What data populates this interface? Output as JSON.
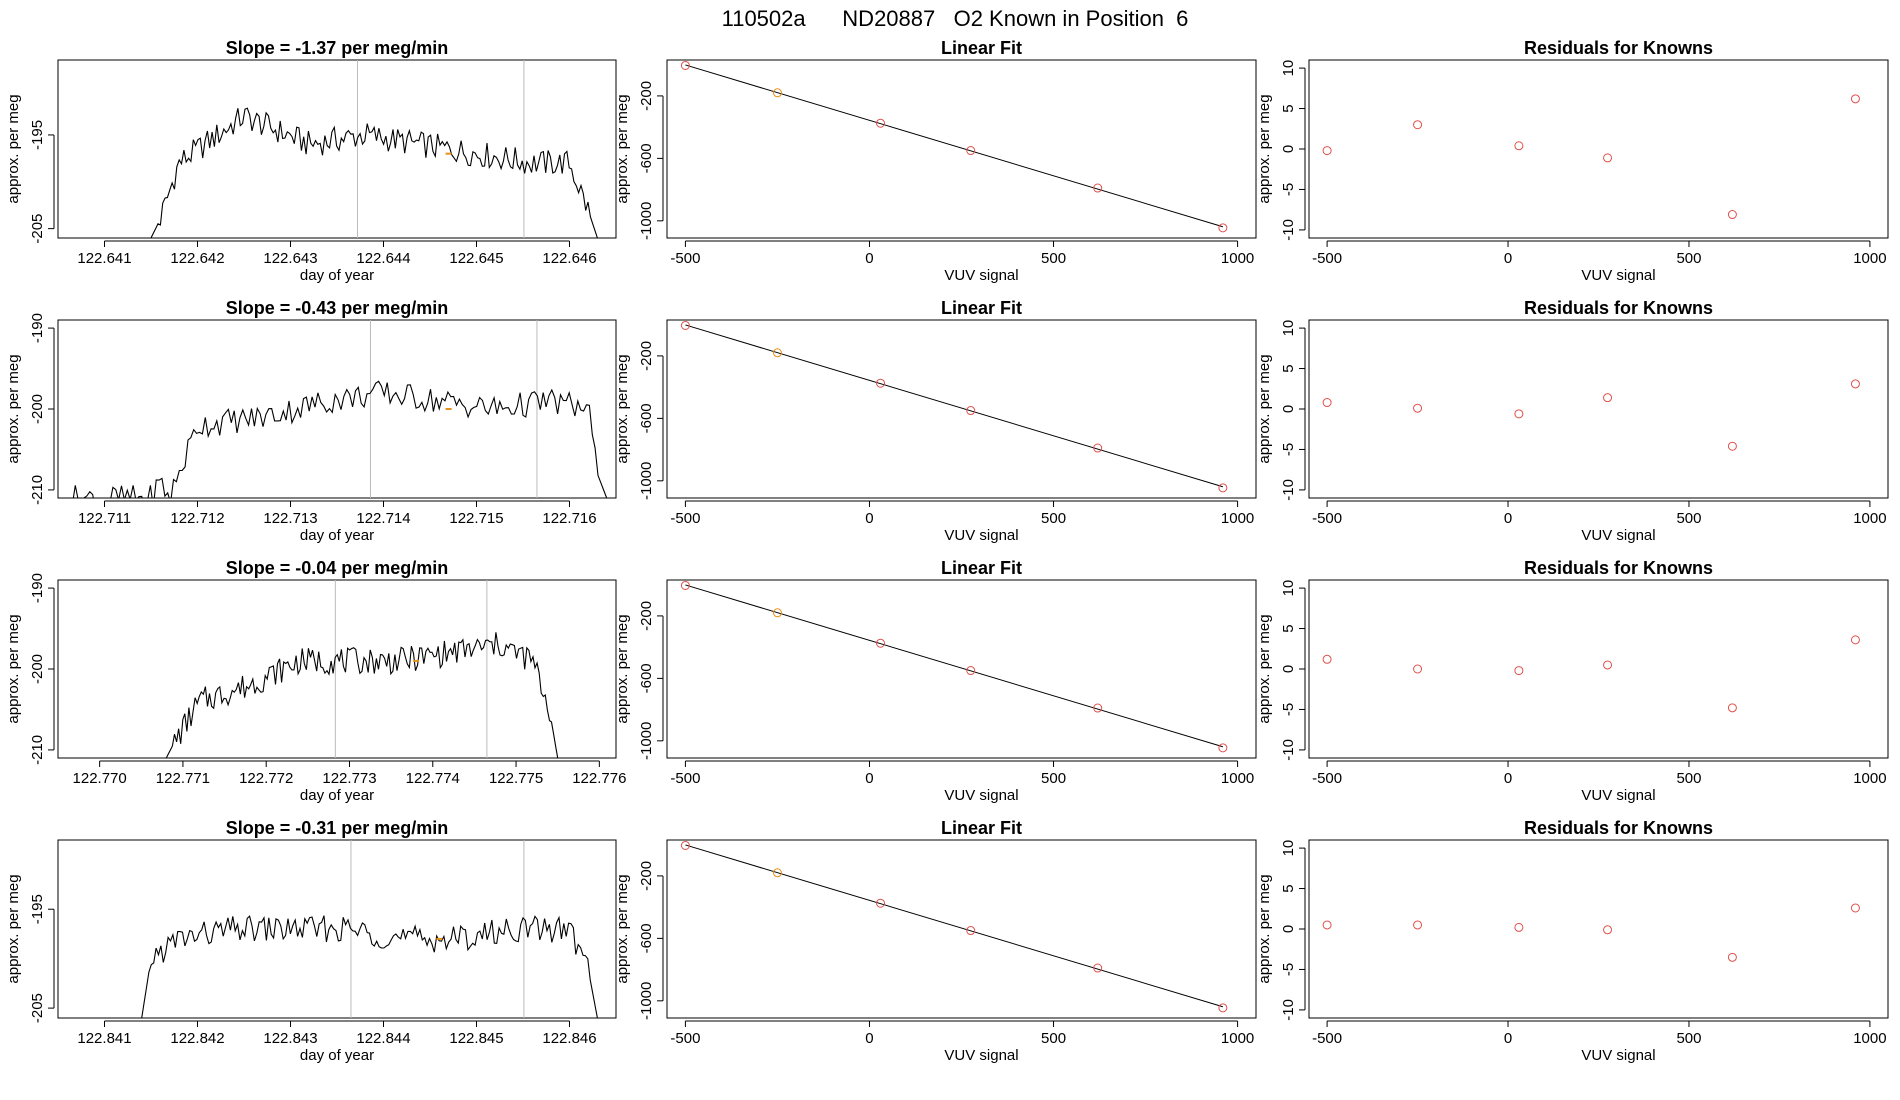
{
  "header": {
    "title": "110502a      ND20887   O2 Known in Position  6"
  },
  "colors": {
    "line": "#000000",
    "point_red": "#e0504a",
    "point_orange": "#e8901a",
    "vline": "#bbbbbb",
    "frame": "#000000"
  },
  "chart_data": [
    {
      "type": "line",
      "row": 0,
      "col": 0,
      "title": "Slope =  -1.37  per meg/min",
      "xlabel": "day of year",
      "ylabel": "approx. per meg",
      "xlim": [
        122.6405,
        122.6465
      ],
      "ylim": [
        -206,
        -187
      ],
      "xticks": [
        "122.641",
        "122.642",
        "122.643",
        "122.644",
        "122.645",
        "122.646"
      ],
      "yticks": [
        "-205",
        "-195"
      ],
      "vlines": [
        122.64372,
        122.64551
      ],
      "marker": {
        "x": 122.6447,
        "y": -197,
        "color": "orange"
      },
      "x": [
        122.6415,
        122.6416,
        122.6418,
        122.6425,
        122.6432,
        122.6438,
        122.6444,
        122.645,
        122.6456,
        122.646,
        122.6462,
        122.6463
      ],
      "y": [
        -206,
        -204,
        -198,
        -193,
        -196,
        -195,
        -196,
        -197,
        -198,
        -198,
        -203,
        -206
      ]
    },
    {
      "type": "scatter",
      "row": 0,
      "col": 1,
      "fit": true,
      "title": "Linear Fit",
      "xlabel": "VUV signal",
      "ylabel": "approx. per meg",
      "xlim": [
        -550,
        1050
      ],
      "ylim": [
        -1110,
        30
      ],
      "xticks": [
        "-500",
        "0",
        "500",
        "1000"
      ],
      "yticks": [
        "-200",
        "-600",
        "-1000"
      ],
      "x": [
        -500,
        -250,
        30,
        275,
        620,
        960
      ],
      "y": [
        -5,
        -180,
        -375,
        -550,
        -790,
        -1045
      ],
      "point_colors": [
        "red",
        "orange",
        "red",
        "red",
        "red",
        "red"
      ]
    },
    {
      "type": "scatter",
      "row": 0,
      "col": 2,
      "title": "Residuals for Knowns",
      "xlabel": "VUV signal",
      "ylabel": "approx. per meg",
      "xlim": [
        -550,
        1050
      ],
      "ylim": [
        -11,
        11
      ],
      "xticks": [
        "-500",
        "0",
        "500",
        "1000"
      ],
      "yticks": [
        "10",
        "5",
        "0",
        "-5",
        "-10"
      ],
      "x": [
        -500,
        -250,
        30,
        275,
        620,
        960
      ],
      "y": [
        -0.2,
        3.0,
        0.4,
        -1.1,
        -8.1,
        6.2
      ]
    },
    {
      "type": "line",
      "row": 1,
      "col": 0,
      "title": "Slope =  -0.43  per meg/min",
      "xlabel": "day of year",
      "ylabel": "approx. per meg",
      "xlim": [
        122.7105,
        122.7165
      ],
      "ylim": [
        -211,
        -189
      ],
      "xticks": [
        "122.711",
        "122.712",
        "122.713",
        "122.714",
        "122.715",
        "122.716"
      ],
      "yticks": [
        "-190",
        "-200",
        "-210"
      ],
      "vlines": [
        122.71386,
        122.71565
      ],
      "marker": {
        "x": 122.7147,
        "y": -200,
        "color": "orange"
      },
      "x": [
        122.7105,
        122.7115,
        122.7116,
        122.7117,
        122.712,
        122.7127,
        122.7134,
        122.714,
        122.7146,
        122.7152,
        122.7158,
        122.7162,
        122.7163,
        122.7164
      ],
      "y": [
        -211,
        -211,
        -209,
        -211,
        -202,
        -201,
        -199,
        -198,
        -199,
        -200,
        -199,
        -200,
        -208,
        -211
      ]
    },
    {
      "type": "scatter",
      "row": 1,
      "col": 1,
      "fit": true,
      "title": "Linear Fit",
      "xlabel": "VUV signal",
      "ylabel": "approx. per meg",
      "xlim": [
        -550,
        1050
      ],
      "ylim": [
        -1110,
        30
      ],
      "xticks": [
        "-500",
        "0",
        "500",
        "1000"
      ],
      "yticks": [
        "-200",
        "-600",
        "-1000"
      ],
      "x": [
        -500,
        -250,
        30,
        275,
        620,
        960
      ],
      "y": [
        -5,
        -180,
        -375,
        -550,
        -790,
        -1045
      ],
      "point_colors": [
        "red",
        "orange",
        "red",
        "red",
        "red",
        "red"
      ]
    },
    {
      "type": "scatter",
      "row": 1,
      "col": 2,
      "title": "Residuals for Knowns",
      "xlabel": "VUV signal",
      "ylabel": "approx. per meg",
      "xlim": [
        -550,
        1050
      ],
      "ylim": [
        -11,
        11
      ],
      "xticks": [
        "-500",
        "0",
        "500",
        "1000"
      ],
      "yticks": [
        "10",
        "5",
        "0",
        "-5",
        "-10"
      ],
      "x": [
        -500,
        -250,
        30,
        275,
        620,
        960
      ],
      "y": [
        0.8,
        0.1,
        -0.6,
        1.4,
        -4.6,
        3.1
      ]
    },
    {
      "type": "line",
      "row": 2,
      "col": 0,
      "title": "Slope =  -0.04  per meg/min",
      "xlabel": "day of year",
      "ylabel": "approx. per meg",
      "xlim": [
        122.7695,
        122.7762
      ],
      "ylim": [
        -211,
        -189
      ],
      "xticks": [
        "122.770",
        "122.771",
        "122.772",
        "122.773",
        "122.774",
        "122.775",
        "122.776"
      ],
      "yticks": [
        "-190",
        "-200",
        "-210"
      ],
      "vlines": [
        122.77283,
        122.77465
      ],
      "marker": {
        "x": 122.7738,
        "y": -199,
        "color": "orange"
      },
      "x": [
        122.7708,
        122.7709,
        122.7712,
        122.7718,
        122.7724,
        122.773,
        122.7736,
        122.7742,
        122.7748,
        122.7752,
        122.7754,
        122.7755
      ],
      "y": [
        -211,
        -209,
        -204,
        -202,
        -199,
        -199,
        -199,
        -198,
        -197,
        -199,
        -205,
        -211
      ]
    },
    {
      "type": "scatter",
      "row": 2,
      "col": 1,
      "fit": true,
      "title": "Linear Fit",
      "xlabel": "VUV signal",
      "ylabel": "approx. per meg",
      "xlim": [
        -550,
        1050
      ],
      "ylim": [
        -1110,
        30
      ],
      "xticks": [
        "-500",
        "0",
        "500",
        "1000"
      ],
      "yticks": [
        "-200",
        "-600",
        "-1000"
      ],
      "x": [
        -500,
        -250,
        30,
        275,
        620,
        960
      ],
      "y": [
        -5,
        -180,
        -375,
        -550,
        -790,
        -1045
      ],
      "point_colors": [
        "red",
        "orange",
        "red",
        "red",
        "red",
        "red"
      ]
    },
    {
      "type": "scatter",
      "row": 2,
      "col": 2,
      "title": "Residuals for Knowns",
      "xlabel": "VUV signal",
      "ylabel": "approx. per meg",
      "xlim": [
        -550,
        1050
      ],
      "ylim": [
        -11,
        11
      ],
      "xticks": [
        "-500",
        "0",
        "500",
        "1000"
      ],
      "yticks": [
        "10",
        "5",
        "0",
        "-5",
        "-10"
      ],
      "x": [
        -500,
        -250,
        30,
        275,
        620,
        960
      ],
      "y": [
        1.2,
        0.0,
        -0.2,
        0.5,
        -4.8,
        3.6
      ]
    },
    {
      "type": "line",
      "row": 3,
      "col": 0,
      "title": "Slope =  -0.31  per meg/min",
      "xlabel": "day of year",
      "ylabel": "approx. per meg",
      "xlim": [
        122.8405,
        122.8465
      ],
      "ylim": [
        -206,
        -188
      ],
      "xticks": [
        "122.841",
        "122.842",
        "122.843",
        "122.844",
        "122.845",
        "122.846"
      ],
      "yticks": [
        "-205",
        "-195"
      ],
      "vlines": [
        122.84365,
        122.84551
      ],
      "marker": {
        "x": 122.8446,
        "y": -198,
        "color": "orange"
      },
      "x": [
        122.8414,
        122.8415,
        122.8418,
        122.8424,
        122.843,
        122.8436,
        122.8442,
        122.8448,
        122.8454,
        122.846,
        122.8462,
        122.8463
      ],
      "y": [
        -206,
        -200,
        -198,
        -197,
        -197,
        -197,
        -198,
        -198,
        -197,
        -197,
        -201,
        -206
      ]
    },
    {
      "type": "scatter",
      "row": 3,
      "col": 1,
      "fit": true,
      "title": "Linear Fit",
      "xlabel": "VUV signal",
      "ylabel": "approx. per meg",
      "xlim": [
        -550,
        1050
      ],
      "ylim": [
        -1110,
        30
      ],
      "xticks": [
        "-500",
        "0",
        "500",
        "1000"
      ],
      "yticks": [
        "-200",
        "-600",
        "-1000"
      ],
      "x": [
        -500,
        -250,
        30,
        275,
        620,
        960
      ],
      "y": [
        -5,
        -180,
        -375,
        -550,
        -790,
        -1045
      ],
      "point_colors": [
        "red",
        "orange",
        "red",
        "red",
        "red",
        "red"
      ]
    },
    {
      "type": "scatter",
      "row": 3,
      "col": 2,
      "title": "Residuals for Knowns",
      "xlabel": "VUV signal",
      "ylabel": "approx. per meg",
      "xlim": [
        -550,
        1050
      ],
      "ylim": [
        -11,
        11
      ],
      "xticks": [
        "-500",
        "0",
        "500",
        "1000"
      ],
      "yticks": [
        "10",
        "5",
        "0",
        "-5",
        "-10"
      ],
      "x": [
        -500,
        -250,
        30,
        275,
        620,
        960
      ],
      "y": [
        0.5,
        0.5,
        0.2,
        -0.1,
        -3.5,
        2.6
      ]
    }
  ]
}
